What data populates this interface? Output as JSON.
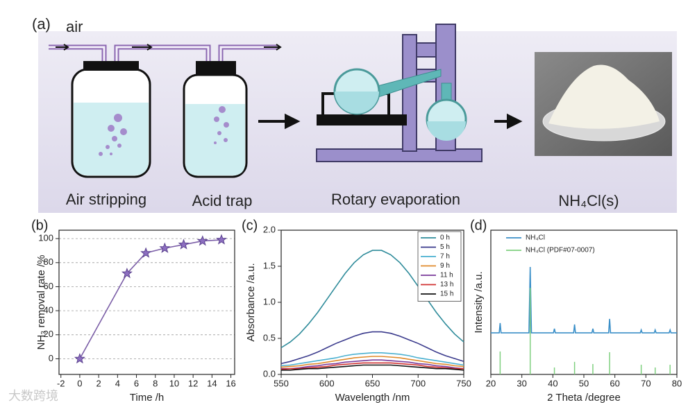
{
  "schematic": {
    "panel_label": "(a)",
    "air": "air",
    "steps": [
      "Air stripping",
      "Acid trap",
      "Rotary evaporation",
      "NH₄Cl(s)"
    ]
  },
  "watermark": "大数跨境",
  "chart_data": [
    {
      "type": "line",
      "panel_label": "(b)",
      "x_label": "Time /h",
      "y_label": "NH₃ removal rate /%",
      "x": [
        0,
        5,
        7,
        9,
        11,
        13,
        15
      ],
      "values": [
        0,
        71,
        88,
        92,
        95,
        98,
        99
      ],
      "color": "#7b5ea7",
      "marker": "star",
      "xlim": [
        -2.2,
        16.4
      ],
      "xticks": [
        -2,
        0,
        2,
        4,
        6,
        8,
        10,
        12,
        14,
        16
      ],
      "ylim": [
        -13,
        107
      ],
      "yticks": [
        0,
        20,
        40,
        60,
        80,
        100
      ],
      "grid": true
    },
    {
      "type": "line",
      "panel_label": "(c)",
      "x_label": "Wavelength /nm",
      "y_label": "Absorbance /a.u.",
      "x": [
        550,
        560,
        570,
        580,
        590,
        600,
        610,
        620,
        630,
        640,
        650,
        660,
        670,
        680,
        690,
        700,
        710,
        720,
        730,
        740,
        750
      ],
      "series": [
        {
          "name": "0 h",
          "color": "#2e8b9a",
          "values": [
            0.37,
            0.45,
            0.56,
            0.7,
            0.86,
            1.04,
            1.22,
            1.4,
            1.55,
            1.66,
            1.72,
            1.72,
            1.66,
            1.55,
            1.4,
            1.22,
            1.04,
            0.86,
            0.7,
            0.56,
            0.45
          ]
        },
        {
          "name": "5 h",
          "color": "#3a3a8c",
          "values": [
            0.15,
            0.18,
            0.22,
            0.26,
            0.31,
            0.37,
            0.43,
            0.48,
            0.53,
            0.57,
            0.59,
            0.59,
            0.57,
            0.53,
            0.48,
            0.43,
            0.37,
            0.31,
            0.26,
            0.22,
            0.18
          ]
        },
        {
          "name": "7 h",
          "color": "#4ab0d0",
          "values": [
            0.12,
            0.13,
            0.15,
            0.17,
            0.19,
            0.21,
            0.23,
            0.26,
            0.28,
            0.29,
            0.3,
            0.3,
            0.29,
            0.28,
            0.26,
            0.23,
            0.21,
            0.19,
            0.17,
            0.15,
            0.13
          ]
        },
        {
          "name": "9 h",
          "color": "#e08a2a",
          "values": [
            0.1,
            0.11,
            0.12,
            0.14,
            0.15,
            0.17,
            0.19,
            0.21,
            0.23,
            0.24,
            0.25,
            0.25,
            0.24,
            0.23,
            0.21,
            0.19,
            0.17,
            0.15,
            0.14,
            0.12,
            0.11
          ]
        },
        {
          "name": "11 h",
          "color": "#7a3a9a",
          "values": [
            0.08,
            0.08,
            0.09,
            0.11,
            0.12,
            0.14,
            0.15,
            0.17,
            0.18,
            0.19,
            0.2,
            0.2,
            0.19,
            0.18,
            0.17,
            0.15,
            0.14,
            0.12,
            0.11,
            0.09,
            0.08
          ]
        },
        {
          "name": "13 h",
          "color": "#d03030",
          "values": [
            0.07,
            0.08,
            0.08,
            0.09,
            0.1,
            0.11,
            0.13,
            0.14,
            0.15,
            0.16,
            0.16,
            0.16,
            0.16,
            0.15,
            0.14,
            0.13,
            0.11,
            0.1,
            0.09,
            0.08,
            0.08
          ]
        },
        {
          "name": "15 h",
          "color": "#111111",
          "values": [
            0.06,
            0.06,
            0.07,
            0.08,
            0.08,
            0.09,
            0.1,
            0.11,
            0.12,
            0.13,
            0.13,
            0.13,
            0.13,
            0.12,
            0.11,
            0.1,
            0.09,
            0.08,
            0.08,
            0.07,
            0.06
          ]
        }
      ],
      "legend": "upper right",
      "xlim": [
        550,
        750
      ],
      "xticks": [
        550,
        600,
        650,
        700,
        750
      ],
      "ylim": [
        0,
        2.0
      ],
      "yticks": [
        {
          "value": 0,
          "label": "0.0"
        },
        0.5,
        {
          "value": 1,
          "label": "1.0"
        },
        1.5,
        {
          "value": 2,
          "label": "2.0"
        }
      ]
    },
    {
      "type": "line",
      "panel_label": "(d)",
      "x_label": "2 Theta /degree",
      "y_label": "Intensity /a.u.",
      "series": [
        {
          "name": "NH₄Cl",
          "color": "#3a8fc8",
          "style": "line",
          "x": [
            20,
            22.7,
            23,
            23.3,
            32.3,
            32.7,
            33.1,
            40.2,
            40.5,
            40.8,
            46.7,
            47,
            47.3,
            52.6,
            52.9,
            53.2,
            58,
            58.3,
            58.6,
            68.2,
            68.5,
            68.8,
            72.7,
            73,
            73.3,
            77.5,
            77.8,
            78.1,
            80
          ],
          "values": [
            28.8,
            28.8,
            35.6,
            28.8,
            28.8,
            74.5,
            28.8,
            28.8,
            31.7,
            28.8,
            28.8,
            34.6,
            28.8,
            28.8,
            31.7,
            28.8,
            28.8,
            38.5,
            28.8,
            28.8,
            30.8,
            28.8,
            28.8,
            30.8,
            28.8,
            28.8,
            30.8,
            28.8,
            28.8
          ]
        },
        {
          "name": "NH₄Cl (PDF#07-0007)",
          "color": "#7fd07f",
          "style": "stick",
          "x": [
            23,
            32.7,
            40.5,
            47,
            52.9,
            58.3,
            68.5,
            73,
            77.8
          ],
          "values": [
            15.9,
            60,
            4.8,
            8.7,
            7.2,
            15.4,
            6.7,
            4.8,
            6.7
          ]
        }
      ],
      "legend": "upper left",
      "xlim": [
        20,
        80
      ],
      "xticks": [
        20,
        30,
        40,
        50,
        60,
        70,
        80
      ],
      "ylim": [
        0,
        100
      ]
    }
  ]
}
